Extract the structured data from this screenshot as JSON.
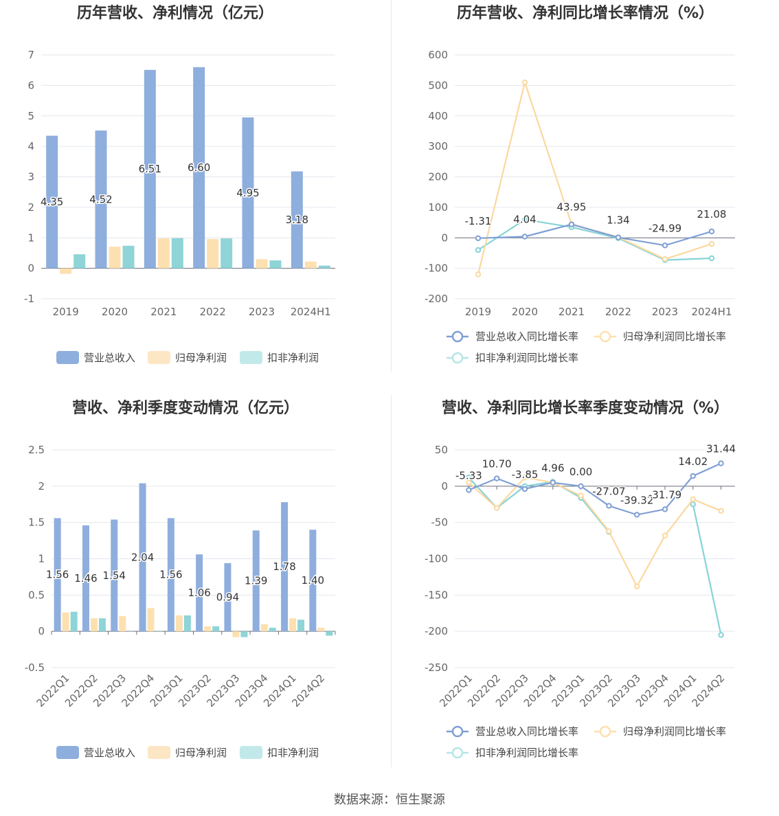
{
  "source": "数据来源：恒生聚源",
  "charts": [
    {
      "type": "bar",
      "title": "历年营收、净利情况（亿元）",
      "categories": [
        "2019",
        "2020",
        "2021",
        "2022",
        "2023",
        "2024H1"
      ],
      "ylim": [
        -1,
        7
      ],
      "yticks": [
        -1,
        0,
        1,
        2,
        3,
        4,
        5,
        6,
        7
      ],
      "series": [
        {
          "name": "营业总收入",
          "color": "#8eaedd",
          "values": [
            4.35,
            4.52,
            6.51,
            6.6,
            4.95,
            3.18
          ],
          "labels": [
            "4.35",
            "4.52",
            "6.51",
            "6.60",
            "4.95",
            "3.18"
          ]
        },
        {
          "name": "归母净利润",
          "color": "#fde0b0",
          "values": [
            -0.18,
            0.71,
            0.98,
            0.96,
            0.3,
            0.22
          ]
        },
        {
          "name": "扣非净利润",
          "color": "#8fd4d6",
          "values": [
            0.46,
            0.74,
            0.99,
            0.98,
            0.26,
            0.09
          ]
        }
      ],
      "legend_colors": [
        "#8eaedd",
        "#fde6c4",
        "#c2e9ea"
      ],
      "grid": true,
      "legend": "bottom"
    },
    {
      "type": "line",
      "title": "历年营收、净利同比增长率情况（%）",
      "categories": [
        "2019",
        "2020",
        "2021",
        "2022",
        "2023",
        "2024H1"
      ],
      "ylim": [
        -200,
        600
      ],
      "yticks": [
        -200,
        -100,
        0,
        100,
        200,
        300,
        400,
        500,
        600
      ],
      "series": [
        {
          "name": "营业总收入同比增长率",
          "color": "#7f9fd4",
          "values": [
            -1.31,
            4.04,
            43.95,
            1.34,
            -24.99,
            21.08
          ],
          "labels": [
            "-1.31",
            "4.04",
            "43.95",
            "1.34",
            "-24.99",
            "21.08"
          ]
        },
        {
          "name": "归母净利润同比增长率",
          "color": "#fbd89f",
          "values": [
            -120,
            510,
            45,
            2,
            -70,
            -20
          ]
        },
        {
          "name": "扣非净利润同比增长率",
          "color": "#86d3d6",
          "values": [
            -40,
            60,
            35,
            -1,
            -73,
            -67
          ]
        }
      ],
      "legend_colors": [
        "#7f9fd4",
        "#fde0b0",
        "#b5e5e7"
      ],
      "grid": true,
      "legend": "bottom"
    },
    {
      "type": "bar",
      "title": "营收、净利季度变动情况（亿元）",
      "categories": [
        "2022Q1",
        "2022Q2",
        "2022Q3",
        "2022Q4",
        "2023Q1",
        "2023Q2",
        "2023Q3",
        "2023Q4",
        "2024Q1",
        "2024Q2"
      ],
      "ylim": [
        -0.5,
        2.5
      ],
      "yticks": [
        -0.5,
        0,
        0.5,
        1,
        1.5,
        2,
        2.5
      ],
      "series": [
        {
          "name": "营业总收入",
          "color": "#8eaedd",
          "values": [
            1.56,
            1.46,
            1.54,
            2.04,
            1.56,
            1.06,
            0.94,
            1.39,
            1.78,
            1.4
          ],
          "labels": [
            "1.56",
            "1.46",
            "1.54",
            "2.04",
            "1.56",
            "1.06",
            "0.94",
            "1.39",
            "1.78",
            "1.40"
          ]
        },
        {
          "name": "归母净利润",
          "color": "#fde0b0",
          "values": [
            0.26,
            0.18,
            0.21,
            0.32,
            0.22,
            0.07,
            -0.08,
            0.1,
            0.18,
            0.05
          ]
        },
        {
          "name": "扣非净利润",
          "color": "#8fd4d6",
          "values": [
            0.27,
            0.18,
            0.0,
            0.0,
            0.22,
            0.07,
            -0.08,
            0.05,
            0.16,
            -0.06
          ]
        }
      ],
      "legend_colors": [
        "#8eaedd",
        "#fde6c4",
        "#c2e9ea"
      ],
      "grid": true,
      "legend": "bottom"
    },
    {
      "type": "line",
      "title": "营收、净利同比增长率季度变动情况（%）",
      "categories": [
        "2022Q1",
        "2022Q2",
        "2022Q3",
        "2022Q4",
        "2023Q1",
        "2023Q2",
        "2023Q3",
        "2023Q4",
        "2024Q1",
        "2024Q2"
      ],
      "ylim": [
        -250,
        50
      ],
      "yticks": [
        -250,
        -200,
        -150,
        -100,
        -50,
        0,
        50
      ],
      "series": [
        {
          "name": "营业总收入同比增长率",
          "color": "#7f9fd4",
          "values": [
            -5.33,
            10.7,
            -3.85,
            4.96,
            0.0,
            -27.07,
            -39.32,
            -31.79,
            14.02,
            31.44
          ],
          "labels": [
            "-5.33",
            "10.70",
            "-3.85",
            "4.96",
            "0.00",
            "-27.07",
            "-39.32",
            "-31.79",
            "14.02",
            "31.44"
          ]
        },
        {
          "name": "归母净利润同比增长率",
          "color": "#fbd89f",
          "values": [
            5,
            -30,
            12,
            5,
            -13,
            -62,
            -138,
            -68,
            -18,
            -34
          ]
        },
        {
          "name": "扣非净利润同比增长率",
          "color": "#86d3d6",
          "values": [
            12,
            -30,
            0,
            6,
            -16,
            -63,
            null,
            null,
            -25,
            -205
          ]
        }
      ],
      "legend_colors": [
        "#7f9fd4",
        "#fde0b0",
        "#b5e5e7"
      ],
      "grid": true,
      "legend": "bottom"
    }
  ]
}
